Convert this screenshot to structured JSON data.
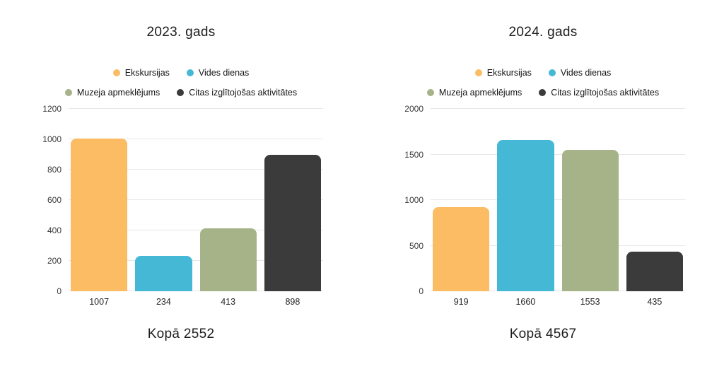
{
  "page": {
    "background": "#ffffff"
  },
  "series": [
    {
      "name": "Ekskursijas",
      "slug": "ekskursijas",
      "color": "#FBBC64"
    },
    {
      "name": "Vides dienas",
      "slug": "vides-dienas",
      "color": "#45B8D6"
    },
    {
      "name": "Muzeja apmeklējums",
      "slug": "muzeja-apmeklejums",
      "color": "#A6B287"
    },
    {
      "name": "Citas izglītojošas aktivitātes",
      "slug": "citas-izglitojosas-aktivitates",
      "color": "#3B3B3B"
    }
  ],
  "legend_rows": [
    [
      0,
      1
    ],
    [
      2,
      3
    ]
  ],
  "chart_data": [
    {
      "type": "bar",
      "title": "2023. gads",
      "categories": [
        "Ekskursijas",
        "Vides dienas",
        "Muzeja apmeklējums",
        "Citas izglītojošas aktivitātes"
      ],
      "values": [
        1007,
        234,
        413,
        898
      ],
      "x_tick_labels": [
        "1007",
        "234",
        "413",
        "898"
      ],
      "yticks": [
        0,
        200,
        400,
        600,
        800,
        1000,
        1200
      ],
      "ylim": [
        0,
        1200
      ],
      "grid": true,
      "legend_position": "top",
      "total": 2552,
      "total_label": "Kopā 2552"
    },
    {
      "type": "bar",
      "title": "2024. gads",
      "categories": [
        "Ekskursijas",
        "Vides dienas",
        "Muzeja apmeklējums",
        "Citas izglītojošas aktivitātes"
      ],
      "values": [
        919,
        1660,
        1553,
        435
      ],
      "x_tick_labels": [
        "919",
        "1660",
        "1553",
        "435"
      ],
      "yticks": [
        0,
        500,
        1000,
        1500,
        2000
      ],
      "ylim": [
        0,
        2000
      ],
      "grid": true,
      "legend_position": "top",
      "total": 4567,
      "total_label": "Kopā 4567"
    }
  ],
  "style": {
    "grid_color": "#e7e7e7",
    "title_color": "#1c1c1c",
    "axis_text_color": "#3a3a3a"
  }
}
